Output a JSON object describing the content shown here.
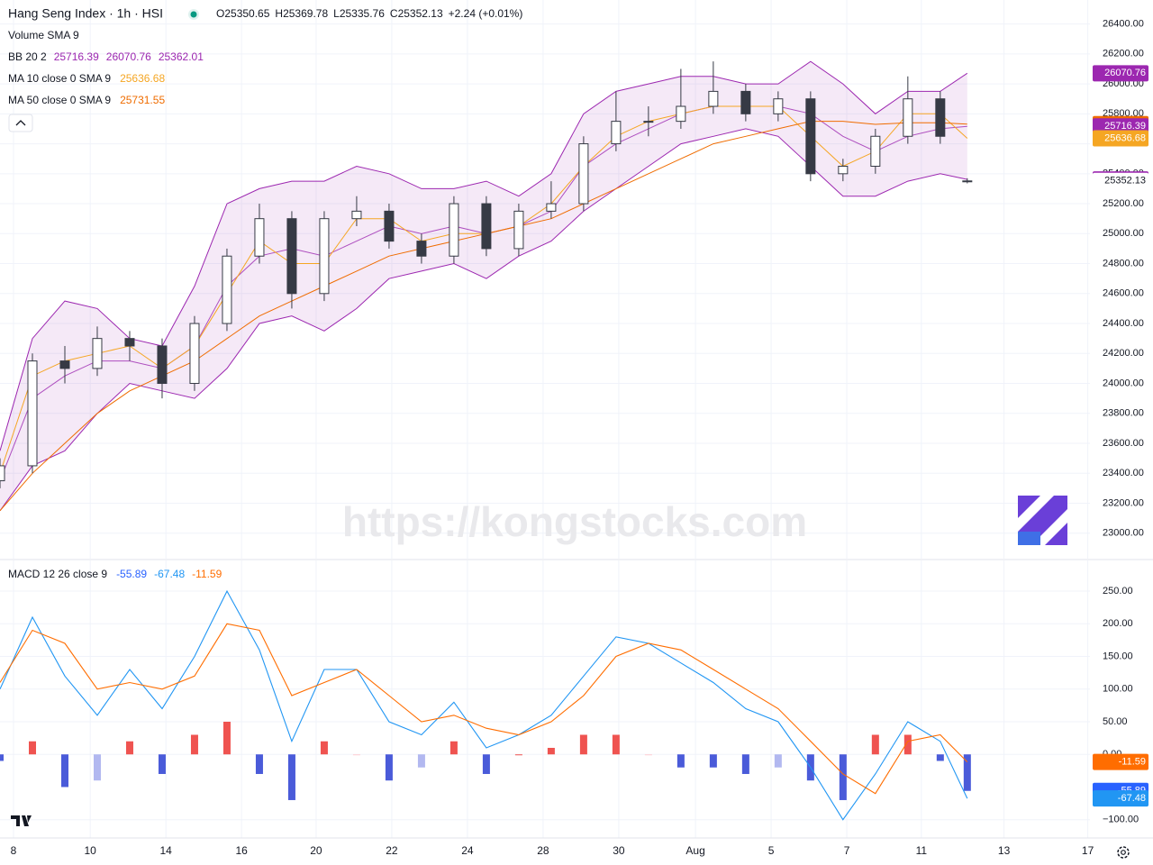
{
  "watermark": "https://kongstocks.com",
  "chart_data": [
    {
      "type": "candlestick",
      "title": "Hang Seng Index · 1h · HSI",
      "ohlc_labels": [
        "O",
        "H",
        "L",
        "C"
      ],
      "change": "+2.24 (+0.01%)",
      "legend_texts": [
        "Volume SMA 9"
      ],
      "up_color": "#ffffff",
      "down_color": "#363a45",
      "wick_color": "#363a45",
      "x": [
        0,
        6,
        12,
        18,
        24,
        30,
        36,
        42,
        48,
        54,
        60,
        66,
        72,
        78,
        84,
        90,
        96,
        102,
        108,
        114,
        120,
        126,
        132,
        138,
        144,
        150,
        156,
        162,
        168,
        174,
        179
      ],
      "open": [
        23350,
        23450,
        24150,
        24100,
        24300,
        24250,
        24000,
        24400,
        24850,
        25100,
        24600,
        25100,
        25150,
        24950,
        24850,
        25200,
        24900,
        25150,
        25200,
        25600,
        25750,
        25750,
        25850,
        25950,
        25800,
        25900,
        25400,
        25450,
        25650,
        25900,
        25350.65
      ],
      "high": [
        23500,
        24200,
        24250,
        24380,
        24350,
        24300,
        24450,
        24900,
        25200,
        25150,
        25150,
        25250,
        25200,
        25000,
        25250,
        25250,
        25200,
        25350,
        25650,
        25950,
        25850,
        26100,
        26150,
        26000,
        25950,
        25950,
        25500,
        25700,
        26050,
        25950,
        25369.78
      ],
      "low": [
        23300,
        23400,
        24000,
        24050,
        24150,
        23900,
        23950,
        24350,
        24800,
        24500,
        24550,
        25050,
        24900,
        24800,
        24800,
        24850,
        24850,
        25100,
        25150,
        25550,
        25650,
        25700,
        25800,
        25750,
        25750,
        25350,
        25350,
        25400,
        25600,
        25600,
        25335.76
      ],
      "close": [
        23450,
        24150,
        24100,
        24300,
        24250,
        24000,
        24400,
        24850,
        25100,
        24600,
        25100,
        25150,
        24950,
        24850,
        25200,
        24900,
        25150,
        25200,
        25600,
        25750,
        25750,
        25850,
        25950,
        25800,
        25900,
        25400,
        25450,
        25650,
        25900,
        25650,
        25352.13
      ],
      "bands": {
        "name": "BB 20 2",
        "color": "#9c27b0",
        "fill": "#9c27b0",
        "basis": [
          23350,
          23900,
          24050,
          24150,
          24150,
          24100,
          24250,
          24650,
          24850,
          24900,
          24850,
          24950,
          25050,
          25000,
          25050,
          25000,
          25050,
          25150,
          25450,
          25600,
          25700,
          25800,
          25850,
          25850,
          25850,
          25800,
          25650,
          25550,
          25650,
          25700,
          25716.39
        ],
        "upper": [
          23550,
          24300,
          24550,
          24500,
          24300,
          24250,
          24650,
          25200,
          25300,
          25350,
          25350,
          25450,
          25400,
          25300,
          25300,
          25350,
          25250,
          25400,
          25800,
          25950,
          26000,
          26050,
          26050,
          26000,
          26000,
          26150,
          26000,
          25800,
          25950,
          25950,
          26070.76
        ],
        "lower": [
          23150,
          23450,
          23550,
          23800,
          24000,
          23950,
          23900,
          24100,
          24400,
          24450,
          24350,
          24500,
          24700,
          24750,
          24800,
          24700,
          24850,
          24950,
          25150,
          25300,
          25450,
          25600,
          25650,
          25700,
          25650,
          25450,
          25250,
          25250,
          25350,
          25400,
          25362.01
        ]
      },
      "series": [
        {
          "name": "MA 10 close 0 SMA 9",
          "color": "#f5a623",
          "values": [
            23400,
            24050,
            24150,
            24200,
            24250,
            24100,
            24250,
            24600,
            24950,
            24800,
            24800,
            25100,
            25100,
            24950,
            25000,
            25000,
            25050,
            25200,
            25450,
            25650,
            25750,
            25800,
            25850,
            25850,
            25850,
            25650,
            25450,
            25550,
            25800,
            25800,
            25636.68
          ]
        },
        {
          "name": "MA 50 close 0 SMA 9",
          "color": "#ef6c00",
          "values": [
            23150,
            23400,
            23600,
            23800,
            23950,
            24050,
            24150,
            24300,
            24450,
            24550,
            24650,
            24750,
            24850,
            24900,
            24950,
            25000,
            25050,
            25100,
            25200,
            25300,
            25400,
            25500,
            25600,
            25650,
            25700,
            25750,
            25750,
            25730,
            25740,
            25740,
            25731.55
          ]
        }
      ],
      "xlim": [
        0,
        201.7
      ],
      "ylim": [
        22830,
        26560
      ],
      "yticks": [
        {
          "value": 23000,
          "label": "23000.00"
        },
        {
          "value": 23200,
          "label": "23200.00"
        },
        {
          "value": 23400,
          "label": "23400.00"
        },
        {
          "value": 23600,
          "label": "23600.00"
        },
        {
          "value": 23800,
          "label": "23800.00"
        },
        {
          "value": 24000,
          "label": "24000.00"
        },
        {
          "value": 24200,
          "label": "24200.00"
        },
        {
          "value": 24400,
          "label": "24400.00"
        },
        {
          "value": 24600,
          "label": "24600.00"
        },
        {
          "value": 24800,
          "label": "24800.00"
        },
        {
          "value": 25000,
          "label": "25000.00"
        },
        {
          "value": 25200,
          "label": "25200.00"
        },
        {
          "value": 25400,
          "label": "25400.00"
        },
        {
          "value": 25600,
          "label": "25600.00"
        },
        {
          "value": 25800,
          "label": "25800.00"
        },
        {
          "value": 26000,
          "label": "26000.00"
        },
        {
          "value": 26200,
          "label": "26200.00"
        },
        {
          "value": 26400,
          "label": "26400.00"
        }
      ],
      "grid": true
    },
    {
      "type": "macd",
      "title": "MACD 12 26 close 9",
      "x": [
        0,
        6,
        12,
        18,
        24,
        30,
        36,
        42,
        48,
        54,
        60,
        66,
        72,
        78,
        84,
        90,
        96,
        102,
        108,
        114,
        120,
        126,
        132,
        138,
        144,
        150,
        156,
        162,
        168,
        174,
        179
      ],
      "histogram": {
        "color": "#2962ff",
        "rising_positive": "#ef5350",
        "falling_positive": "#ffcdd2",
        "falling_negative": "#4a5bd9",
        "rising_negative": "#b2b8f0",
        "values": [
          -10,
          20,
          -50,
          -40,
          20,
          -30,
          30,
          50,
          -30,
          -70,
          20,
          0,
          -40,
          -20,
          20,
          -30,
          0,
          10,
          30,
          30,
          0,
          -20,
          -20,
          -30,
          -20,
          -40,
          -70,
          30,
          30,
          -10,
          -55.89
        ]
      },
      "macd": {
        "color": "#2196f3",
        "values": [
          100,
          210,
          120,
          60,
          130,
          70,
          150,
          250,
          160,
          20,
          130,
          130,
          50,
          30,
          80,
          10,
          30,
          60,
          120,
          180,
          170,
          140,
          110,
          70,
          50,
          -20,
          -100,
          -30,
          50,
          20,
          -67.48
        ]
      },
      "signal": {
        "color": "#ff6d00",
        "values": [
          110,
          190,
          170,
          100,
          110,
          100,
          120,
          200,
          190,
          90,
          110,
          130,
          90,
          50,
          60,
          40,
          30,
          50,
          90,
          150,
          170,
          160,
          130,
          100,
          70,
          20,
          -30,
          -60,
          20,
          30,
          -11.59
        ]
      },
      "xlim": [
        0,
        201.7
      ],
      "ylim": [
        -128,
        297
      ],
      "yticks": [
        {
          "value": -100,
          "label": "−100.00"
        },
        {
          "value": 0,
          "label": "0.00"
        },
        {
          "value": 50,
          "label": "50.00"
        },
        {
          "value": 100,
          "label": "100.00"
        },
        {
          "value": 150,
          "label": "150.00"
        },
        {
          "value": 200,
          "label": "200.00"
        },
        {
          "value": 250,
          "label": "250.00"
        }
      ],
      "xticks": [
        {
          "value": 2.5,
          "label": "8"
        },
        {
          "value": 16.7,
          "label": "10"
        },
        {
          "value": 30.7,
          "label": "14"
        },
        {
          "value": 44.7,
          "label": "16"
        },
        {
          "value": 58.5,
          "label": "20"
        },
        {
          "value": 72.5,
          "label": "22"
        },
        {
          "value": 86.5,
          "label": "24"
        },
        {
          "value": 100.5,
          "label": "28"
        },
        {
          "value": 114.5,
          "label": "30"
        },
        {
          "value": 128.7,
          "label": "Aug"
        },
        {
          "value": 142.7,
          "label": "5"
        },
        {
          "value": 156.7,
          "label": "7"
        },
        {
          "value": 170.5,
          "label": "11"
        },
        {
          "value": 185.8,
          "label": "13"
        },
        {
          "value": 201.3,
          "label": "17"
        }
      ],
      "grid": true
    }
  ]
}
